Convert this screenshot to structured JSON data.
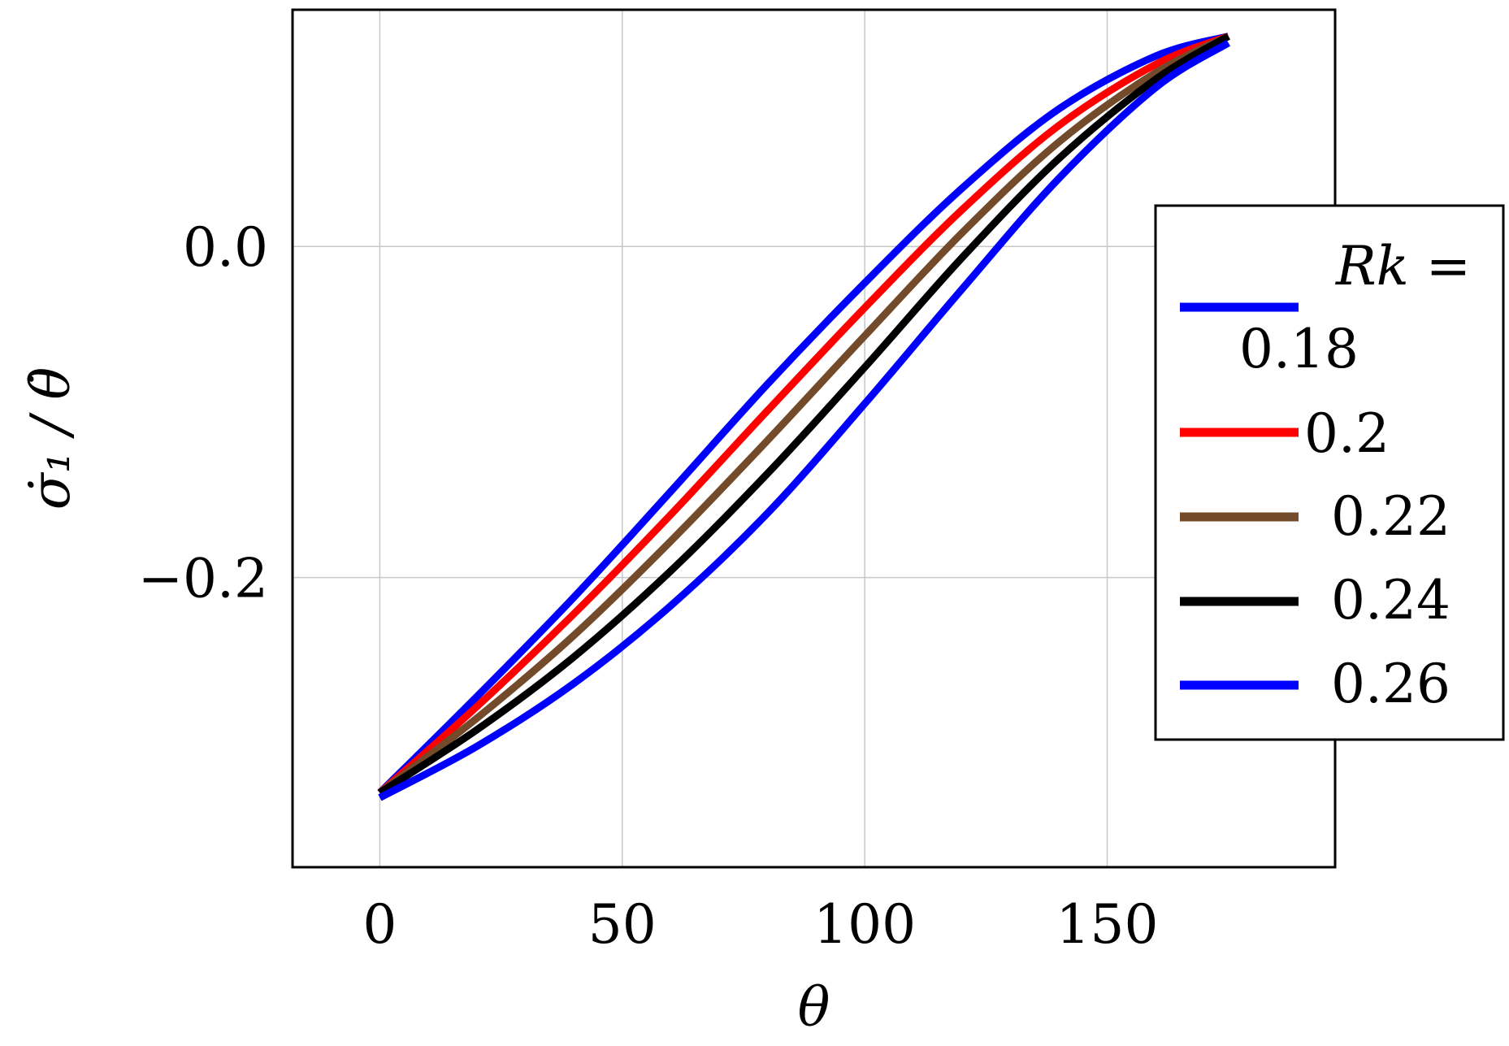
{
  "chart_data": {
    "type": "line",
    "xlabel": "θ",
    "ylabel": "σ̇₁ / θ̇",
    "xlim": [
      -18,
      197
    ],
    "ylim": [
      -0.375,
      0.143
    ],
    "xticks": [
      0,
      50,
      100,
      150
    ],
    "xtick_labels": [
      "0",
      "50",
      "100",
      "150"
    ],
    "yticks": [
      0.0,
      -0.2
    ],
    "ytick_labels": [
      "0.0",
      "−0.2"
    ],
    "grid": true,
    "legend": {
      "position": "right",
      "title": "Rk =",
      "entries": [
        "0.18",
        "0.2",
        "0.22",
        "0.24",
        "0.26"
      ]
    },
    "x": [
      0,
      20,
      40,
      60,
      80,
      100,
      120,
      140,
      160,
      175
    ],
    "series": [
      {
        "name": "0.18",
        "color": "#0000ff",
        "values": [
          -0.33,
          -0.272,
          -0.212,
          -0.148,
          -0.083,
          -0.022,
          0.035,
          0.083,
          0.115,
          0.127
        ]
      },
      {
        "name": "0.2",
        "color": "#ff0000",
        "values": [
          -0.33,
          -0.278,
          -0.222,
          -0.162,
          -0.099,
          -0.037,
          0.022,
          0.073,
          0.11,
          0.127
        ]
      },
      {
        "name": "0.22",
        "color": "#734b2a",
        "values": [
          -0.33,
          -0.285,
          -0.235,
          -0.178,
          -0.117,
          -0.054,
          0.008,
          0.063,
          0.105,
          0.127
        ]
      },
      {
        "name": "0.24",
        "color": "#000000",
        "values": [
          -0.33,
          -0.292,
          -0.248,
          -0.196,
          -0.137,
          -0.073,
          -0.007,
          0.053,
          0.101,
          0.127
        ]
      },
      {
        "name": "0.26",
        "color": "#0000ff",
        "values": [
          -0.333,
          -0.302,
          -0.264,
          -0.217,
          -0.161,
          -0.095,
          -0.026,
          0.041,
          0.096,
          0.123
        ]
      }
    ]
  }
}
